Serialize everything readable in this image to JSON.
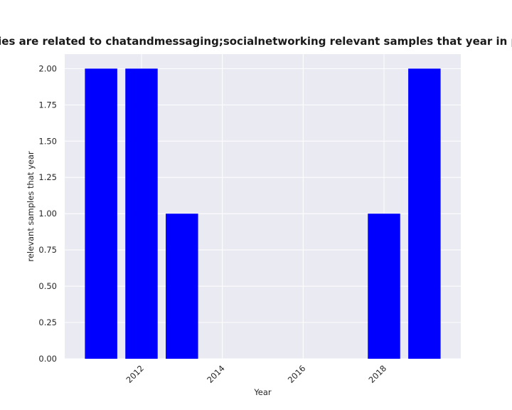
{
  "chart_data": {
    "type": "bar",
    "title": "How many stories are related to chatandmessaging;socialnetworking relevant samples that year in privacy policies",
    "xlabel": "Year",
    "ylabel": "relevant samples that year",
    "x": [
      2011,
      2012,
      2013,
      2018,
      2019
    ],
    "values": [
      2,
      2,
      1,
      1,
      2
    ],
    "xlim": [
      2010.1,
      2019.9
    ],
    "ylim": [
      0,
      2.1
    ],
    "xticks": [
      "2012",
      "2014",
      "2016",
      "2018"
    ],
    "yticks": [
      "0.00",
      "0.25",
      "0.50",
      "0.75",
      "1.00",
      "1.25",
      "1.50",
      "1.75",
      "2.00"
    ],
    "bar_color": "#0000ff",
    "background_color": "#eaeaf2",
    "grid": true,
    "legend": "none"
  }
}
